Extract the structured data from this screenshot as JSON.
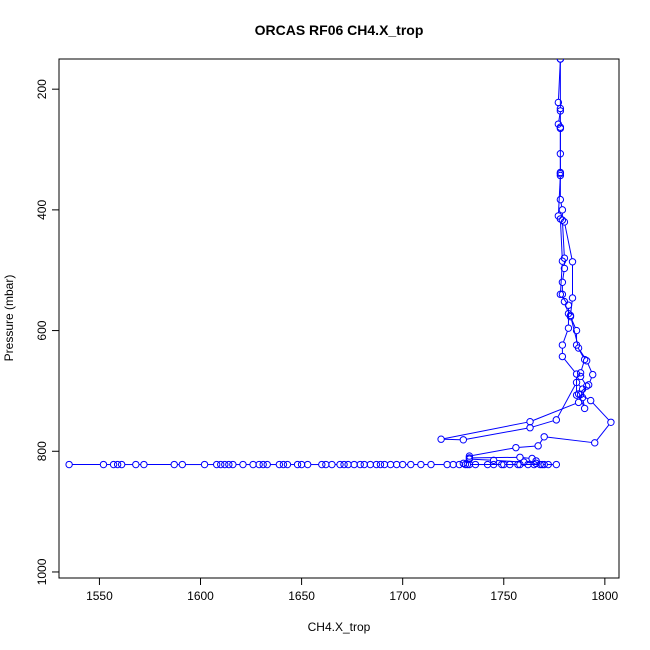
{
  "chart_data": {
    "type": "line",
    "title": "ORCAS RF06 CH4.X_trop",
    "xlabel": "CH4.X_trop",
    "ylabel": "Pressure (mbar)",
    "xlim": [
      1530,
      1807
    ],
    "ylim": [
      1010,
      150
    ],
    "y_reversed": true,
    "x_ticks": [
      1550,
      1600,
      1650,
      1700,
      1750,
      1800
    ],
    "y_ticks": [
      200,
      400,
      600,
      800,
      1000
    ],
    "grid": false,
    "legend": "none",
    "series": [
      {
        "color": "#0000ff",
        "marker": "open-circle",
        "points": [
          [
            1535,
            822
          ],
          [
            1552,
            822
          ],
          [
            1557,
            822
          ],
          [
            1559,
            822
          ],
          [
            1561,
            822
          ],
          [
            1568,
            822
          ],
          [
            1572,
            822
          ],
          [
            1587,
            822
          ],
          [
            1591,
            822
          ],
          [
            1602,
            822
          ],
          [
            1608,
            822
          ],
          [
            1610,
            822
          ],
          [
            1612,
            822
          ],
          [
            1614,
            822
          ],
          [
            1616,
            822
          ],
          [
            1621,
            822
          ],
          [
            1626,
            822
          ],
          [
            1629,
            822
          ],
          [
            1631,
            822
          ],
          [
            1633,
            822
          ],
          [
            1639,
            822
          ],
          [
            1641,
            822
          ],
          [
            1643,
            822
          ],
          [
            1648,
            822
          ],
          [
            1650,
            822
          ],
          [
            1653,
            822
          ],
          [
            1660,
            822
          ],
          [
            1662,
            822
          ],
          [
            1665,
            822
          ],
          [
            1669,
            822
          ],
          [
            1671,
            822
          ],
          [
            1673,
            822
          ],
          [
            1676,
            822
          ],
          [
            1679,
            822
          ],
          [
            1681,
            822
          ],
          [
            1684,
            822
          ],
          [
            1687,
            822
          ],
          [
            1689,
            822
          ],
          [
            1691,
            822
          ],
          [
            1694,
            822
          ],
          [
            1697,
            822
          ],
          [
            1700,
            822
          ],
          [
            1704,
            822
          ],
          [
            1709,
            822
          ],
          [
            1714,
            822
          ],
          [
            1722,
            822
          ],
          [
            1725,
            822
          ],
          [
            1728,
            822
          ],
          [
            1731,
            822
          ],
          [
            1733,
            822
          ],
          [
            1736,
            822
          ],
          [
            1742,
            822
          ],
          [
            1745,
            822
          ],
          [
            1749,
            822
          ],
          [
            1753,
            822
          ],
          [
            1758,
            822
          ],
          [
            1762,
            822
          ],
          [
            1765,
            822
          ],
          [
            1768,
            822
          ],
          [
            1772,
            822
          ],
          [
            1776,
            822
          ],
          [
            1770,
            822
          ],
          [
            1766,
            820
          ],
          [
            1760,
            818
          ],
          [
            1745,
            815
          ],
          [
            1733,
            813
          ],
          [
            1733,
            811
          ],
          [
            1758,
            810
          ],
          [
            1764,
            812
          ],
          [
            1766,
            816
          ],
          [
            1769,
            822
          ],
          [
            1757,
            822
          ],
          [
            1750,
            822
          ],
          [
            1732,
            822
          ],
          [
            1730,
            820
          ],
          [
            1733,
            808
          ],
          [
            1756,
            794
          ],
          [
            1767,
            791
          ],
          [
            1770,
            776
          ],
          [
            1795,
            786
          ],
          [
            1803,
            752
          ],
          [
            1793,
            716
          ],
          [
            1788,
            706
          ],
          [
            1789,
            697
          ],
          [
            1786,
            686
          ],
          [
            1776,
            748
          ],
          [
            1763,
            761
          ],
          [
            1730,
            781
          ],
          [
            1719,
            780
          ],
          [
            1763,
            751
          ],
          [
            1787,
            719
          ],
          [
            1791,
            692
          ],
          [
            1788,
            676
          ],
          [
            1788,
            670
          ],
          [
            1790,
            648
          ],
          [
            1786,
            624
          ],
          [
            1786,
            600
          ],
          [
            1783,
            577
          ],
          [
            1782,
            572
          ],
          [
            1780,
            552
          ],
          [
            1779,
            540
          ],
          [
            1779,
            520
          ],
          [
            1780,
            497
          ],
          [
            1780,
            480
          ],
          [
            1779,
            417
          ],
          [
            1779,
            400
          ],
          [
            1778,
            383
          ],
          [
            1778,
            340
          ],
          [
            1778,
            307
          ],
          [
            1778,
            263
          ],
          [
            1778,
            232
          ],
          [
            1777,
            222
          ],
          [
            1778,
            150
          ]
        ]
      },
      {
        "color": "#0000ff",
        "marker": "open-circle",
        "points": [
          [
            1778,
            150
          ],
          [
            1778,
            236
          ],
          [
            1777,
            258
          ],
          [
            1778,
            265
          ],
          [
            1778,
            338
          ],
          [
            1778,
            343
          ],
          [
            1777,
            410
          ],
          [
            1778,
            415
          ],
          [
            1779,
            485
          ],
          [
            1778,
            540
          ],
          [
            1782,
            558
          ],
          [
            1782,
            596
          ],
          [
            1779,
            624
          ],
          [
            1779,
            643
          ],
          [
            1786,
            672
          ],
          [
            1786,
            707
          ],
          [
            1789,
            711
          ],
          [
            1790,
            729
          ],
          [
            1787,
            705
          ],
          [
            1792,
            690
          ],
          [
            1794,
            673
          ],
          [
            1791,
            650
          ],
          [
            1787,
            629
          ],
          [
            1783,
            575
          ],
          [
            1784,
            546
          ],
          [
            1784,
            486
          ],
          [
            1780,
            420
          ]
        ]
      }
    ]
  }
}
